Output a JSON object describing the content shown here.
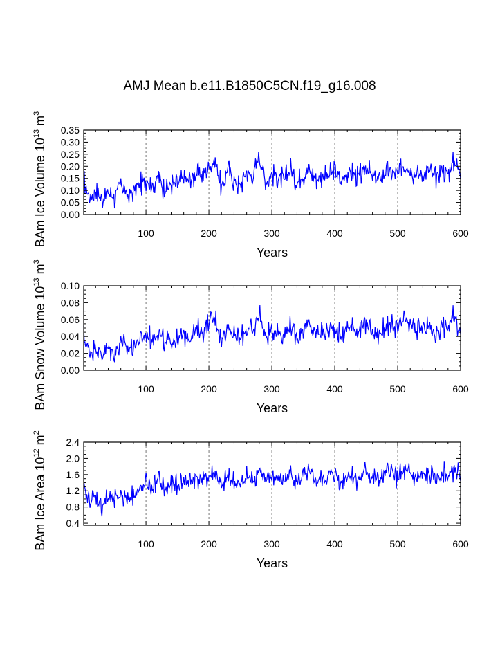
{
  "title": "AMJ Mean b.e11.B1850C5CN.f19_g16.008",
  "colors": {
    "line": "#0000ff",
    "frame": "#000000",
    "grid": "#555555"
  },
  "chart_data": [
    {
      "type": "line",
      "name": "ice-volume",
      "xlabel": "Years",
      "ylabel": {
        "main": "BAm Ice Volume 10",
        "exp1": "13",
        "mid": " m",
        "exp2": "3"
      },
      "xlim": [
        1,
        600
      ],
      "ylim": [
        0.0,
        0.35
      ],
      "xticks": [
        "100",
        "200",
        "300",
        "400",
        "500",
        "600"
      ],
      "yticks": [
        "0.00",
        "0.05",
        "0.10",
        "0.15",
        "0.20",
        "0.25",
        "0.30",
        "0.35"
      ],
      "ytick_values": [
        0.0,
        0.05,
        0.1,
        0.15,
        0.2,
        0.25,
        0.3,
        0.35
      ],
      "xtick_values": [
        100,
        200,
        300,
        400,
        500,
        600
      ],
      "gridlines_x": [
        100,
        200,
        300,
        400,
        500
      ],
      "series": [
        {
          "name": "BAm Ice Volume",
          "x": [
            1,
            10,
            20,
            30,
            40,
            50,
            60,
            70,
            80,
            90,
            100,
            110,
            120,
            130,
            140,
            150,
            160,
            170,
            180,
            190,
            200,
            210,
            220,
            230,
            240,
            250,
            260,
            270,
            280,
            290,
            300,
            310,
            320,
            330,
            340,
            350,
            360,
            370,
            380,
            390,
            400,
            410,
            420,
            430,
            440,
            450,
            460,
            470,
            480,
            490,
            500,
            510,
            520,
            530,
            540,
            550,
            560,
            570,
            580,
            590,
            600
          ],
          "values": [
            0.14,
            0.07,
            0.1,
            0.06,
            0.09,
            0.07,
            0.13,
            0.08,
            0.1,
            0.12,
            0.15,
            0.12,
            0.16,
            0.1,
            0.13,
            0.12,
            0.15,
            0.14,
            0.17,
            0.16,
            0.2,
            0.22,
            0.11,
            0.19,
            0.14,
            0.12,
            0.18,
            0.15,
            0.25,
            0.13,
            0.17,
            0.16,
            0.14,
            0.19,
            0.13,
            0.17,
            0.18,
            0.15,
            0.16,
            0.16,
            0.18,
            0.13,
            0.18,
            0.17,
            0.16,
            0.2,
            0.15,
            0.14,
            0.17,
            0.18,
            0.16,
            0.21,
            0.19,
            0.16,
            0.17,
            0.18,
            0.15,
            0.19,
            0.17,
            0.22,
            0.17
          ]
        }
      ]
    },
    {
      "type": "line",
      "name": "snow-volume",
      "xlabel": "Years",
      "ylabel": {
        "main": "BAm Snow Volume 10",
        "exp1": "13",
        "mid": " m",
        "exp2": "3"
      },
      "xlim": [
        1,
        600
      ],
      "ylim": [
        0.0,
        0.1
      ],
      "xticks": [
        "100",
        "200",
        "300",
        "400",
        "500",
        "600"
      ],
      "yticks": [
        "0.00",
        "0.02",
        "0.04",
        "0.06",
        "0.08",
        "0.10"
      ],
      "ytick_values": [
        0.0,
        0.02,
        0.04,
        0.06,
        0.08,
        0.1
      ],
      "xtick_values": [
        100,
        200,
        300,
        400,
        500,
        600
      ],
      "gridlines_x": [
        100,
        200,
        300,
        400,
        500
      ],
      "series": [
        {
          "name": "BAm Snow Volume",
          "x": [
            1,
            10,
            20,
            30,
            40,
            50,
            60,
            70,
            80,
            90,
            100,
            110,
            120,
            130,
            140,
            150,
            160,
            170,
            180,
            190,
            200,
            210,
            220,
            230,
            240,
            250,
            260,
            270,
            280,
            290,
            300,
            310,
            320,
            330,
            340,
            350,
            360,
            370,
            380,
            390,
            400,
            410,
            420,
            430,
            440,
            450,
            460,
            470,
            480,
            490,
            500,
            510,
            520,
            530,
            540,
            550,
            560,
            570,
            580,
            590,
            600
          ],
          "values": [
            0.04,
            0.02,
            0.03,
            0.018,
            0.026,
            0.02,
            0.036,
            0.024,
            0.03,
            0.034,
            0.042,
            0.036,
            0.046,
            0.03,
            0.038,
            0.034,
            0.042,
            0.04,
            0.048,
            0.046,
            0.056,
            0.062,
            0.034,
            0.054,
            0.04,
            0.036,
            0.05,
            0.044,
            0.068,
            0.038,
            0.048,
            0.046,
            0.042,
            0.054,
            0.038,
            0.05,
            0.052,
            0.044,
            0.046,
            0.046,
            0.052,
            0.038,
            0.052,
            0.05,
            0.046,
            0.056,
            0.044,
            0.042,
            0.05,
            0.052,
            0.046,
            0.06,
            0.054,
            0.046,
            0.05,
            0.052,
            0.044,
            0.054,
            0.05,
            0.064,
            0.048
          ]
        }
      ]
    },
    {
      "type": "line",
      "name": "ice-area",
      "xlabel": "Years",
      "ylabel": {
        "main": "BAm Ice Area 10",
        "exp1": "12",
        "mid": " m",
        "exp2": "2"
      },
      "xlim": [
        1,
        600
      ],
      "ylim": [
        0.35,
        2.4
      ],
      "xticks": [
        "100",
        "200",
        "300",
        "400",
        "500",
        "600"
      ],
      "yticks": [
        "0.4",
        "0.8",
        "1.2",
        "1.6",
        "2.0",
        "2.4"
      ],
      "ytick_values": [
        0.4,
        0.8,
        1.2,
        1.6,
        2.0,
        2.4
      ],
      "xtick_values": [
        100,
        200,
        300,
        400,
        500,
        600
      ],
      "gridlines_x": [
        100,
        200,
        300,
        400,
        500
      ],
      "series": [
        {
          "name": "BAm Ice Area",
          "x": [
            1,
            10,
            20,
            30,
            40,
            50,
            60,
            70,
            80,
            90,
            100,
            110,
            120,
            130,
            140,
            150,
            160,
            170,
            180,
            190,
            200,
            210,
            220,
            230,
            240,
            250,
            260,
            270,
            280,
            290,
            300,
            310,
            320,
            330,
            340,
            350,
            360,
            370,
            380,
            390,
            400,
            410,
            420,
            430,
            440,
            450,
            460,
            470,
            480,
            490,
            500,
            510,
            520,
            530,
            540,
            550,
            560,
            570,
            580,
            590,
            600
          ],
          "values": [
            1.2,
            0.9,
            1.05,
            0.85,
            1.0,
            0.95,
            1.15,
            1.0,
            1.1,
            1.2,
            1.35,
            1.25,
            1.45,
            1.2,
            1.35,
            1.3,
            1.45,
            1.4,
            1.55,
            1.5,
            1.55,
            1.65,
            1.25,
            1.55,
            1.4,
            1.3,
            1.55,
            1.45,
            1.75,
            1.4,
            1.55,
            1.5,
            1.45,
            1.6,
            1.4,
            1.55,
            1.6,
            1.45,
            1.5,
            1.55,
            1.65,
            1.4,
            1.6,
            1.55,
            1.5,
            1.7,
            1.5,
            1.45,
            1.6,
            1.65,
            1.5,
            1.65,
            1.6,
            1.5,
            1.55,
            1.6,
            1.5,
            1.65,
            1.55,
            1.75,
            1.55
          ]
        }
      ]
    }
  ]
}
